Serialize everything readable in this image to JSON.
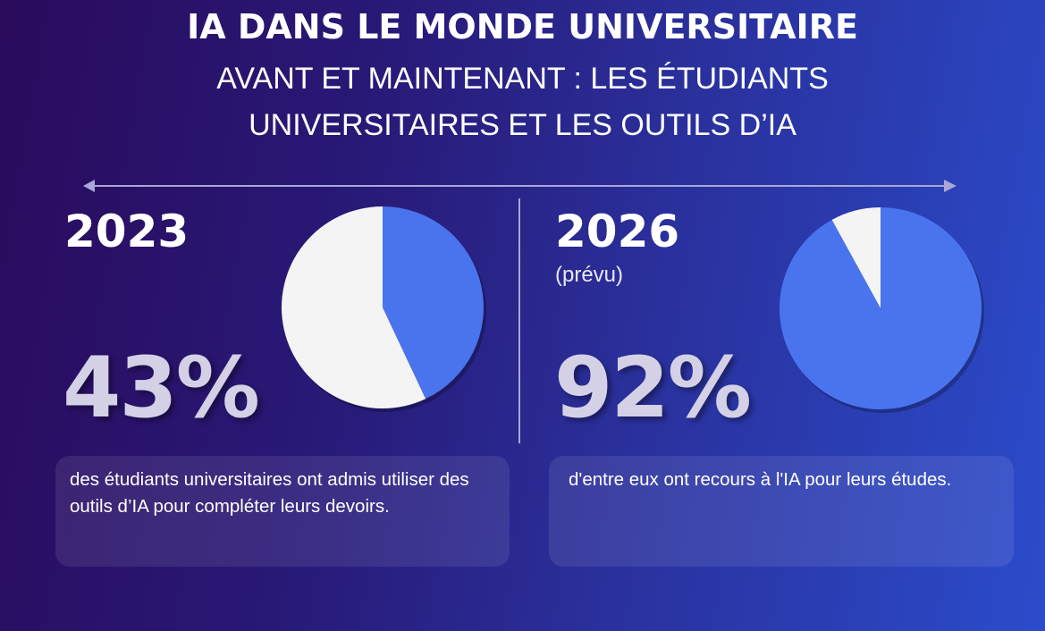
{
  "header": {
    "title": "IA DANS LE MONDE UNIVERSITAIRE",
    "subtitle": "AVANT ET MAINTENANT : LES ÉTUDIANTS UNIVERSITAIRES ET LES OUTILS D’IA"
  },
  "colors": {
    "ai_users": "#4a74ee",
    "others": "#f4f4f4",
    "big_number": "#d4d1e6"
  },
  "chart_data": [
    {
      "type": "pie",
      "year": "2023",
      "note": "",
      "big_label": "43%",
      "slices": [
        {
          "value": 43,
          "color": "#4a74ee"
        },
        {
          "value": 57,
          "color": "#f4f4f4"
        }
      ],
      "description": "des étudiants universitaires ont admis utiliser des outils d’IA pour compléter leurs devoirs."
    },
    {
      "type": "pie",
      "year": "2026",
      "note": "(prévu)",
      "big_label": "92%",
      "slices": [
        {
          "value": 92,
          "color": "#4a74ee"
        },
        {
          "value": 8,
          "color": "#f4f4f4"
        }
      ],
      "description": "d'entre eux ont recours à l'IA pour leurs études."
    }
  ]
}
